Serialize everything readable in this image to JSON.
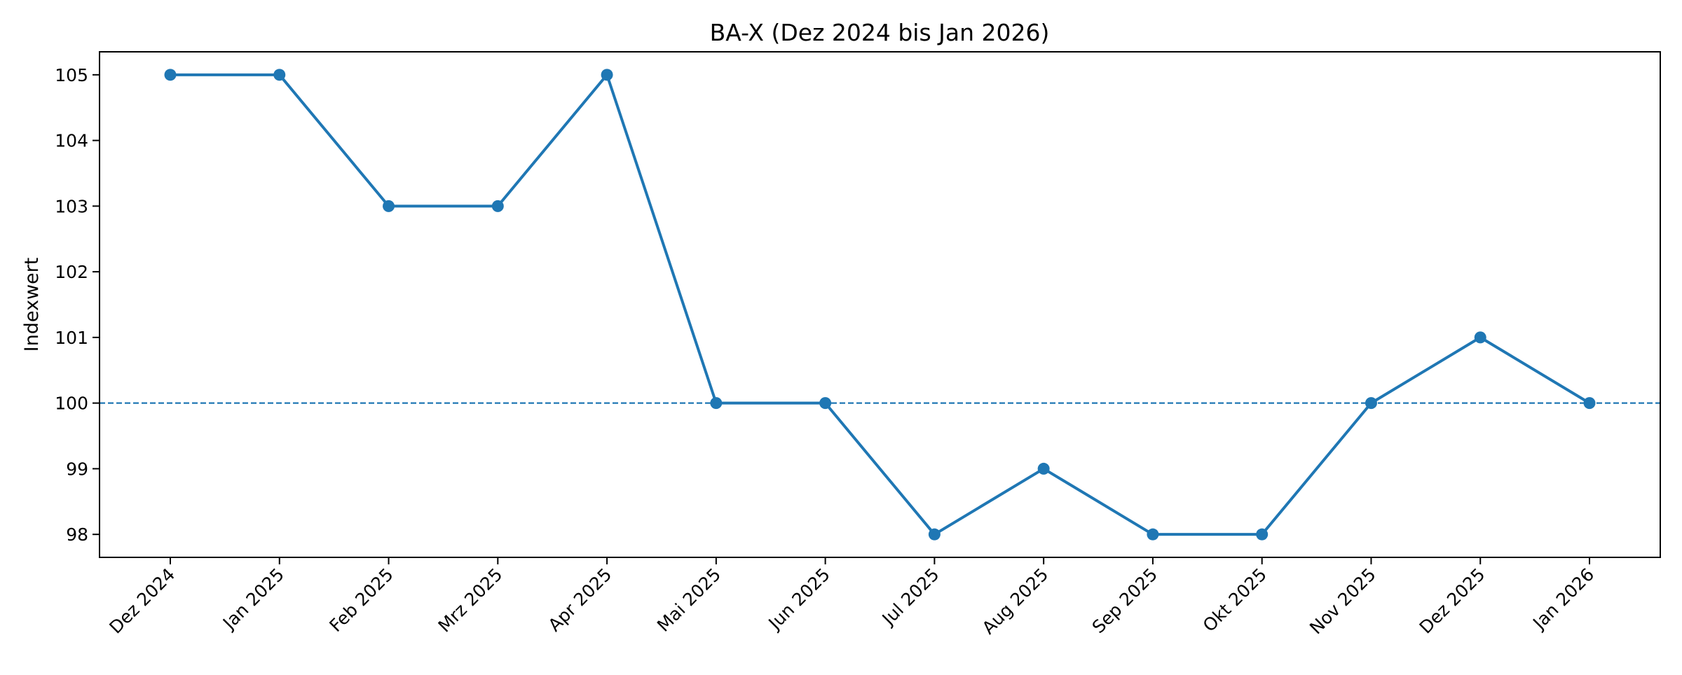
{
  "chart_data": {
    "type": "line",
    "title": "BA-X (Dez 2024 bis Jan 2026)",
    "xlabel": "",
    "ylabel": "Indexwert",
    "categories": [
      "Dez 2024",
      "Jan 2025",
      "Feb 2025",
      "Mrz 2025",
      "Apr 2025",
      "Mai 2025",
      "Jun 2025",
      "Jul 2025",
      "Aug 2025",
      "Sep 2025",
      "Okt 2025",
      "Nov 2025",
      "Dez 2025",
      "Jan 2026"
    ],
    "series": [
      {
        "values": [
          105,
          105,
          103,
          103,
          105,
          100,
          100,
          98,
          99,
          98,
          98,
          100,
          101,
          100
        ],
        "color": "#1f77b4",
        "marker": "circle"
      }
    ],
    "reference_line": {
      "y": 100,
      "style": "dashed",
      "color": "#1f77b4"
    },
    "ylim": [
      97.65,
      105.35
    ],
    "yticks": [
      98,
      99,
      100,
      101,
      102,
      103,
      104,
      105
    ],
    "grid": false,
    "legend": "none"
  }
}
